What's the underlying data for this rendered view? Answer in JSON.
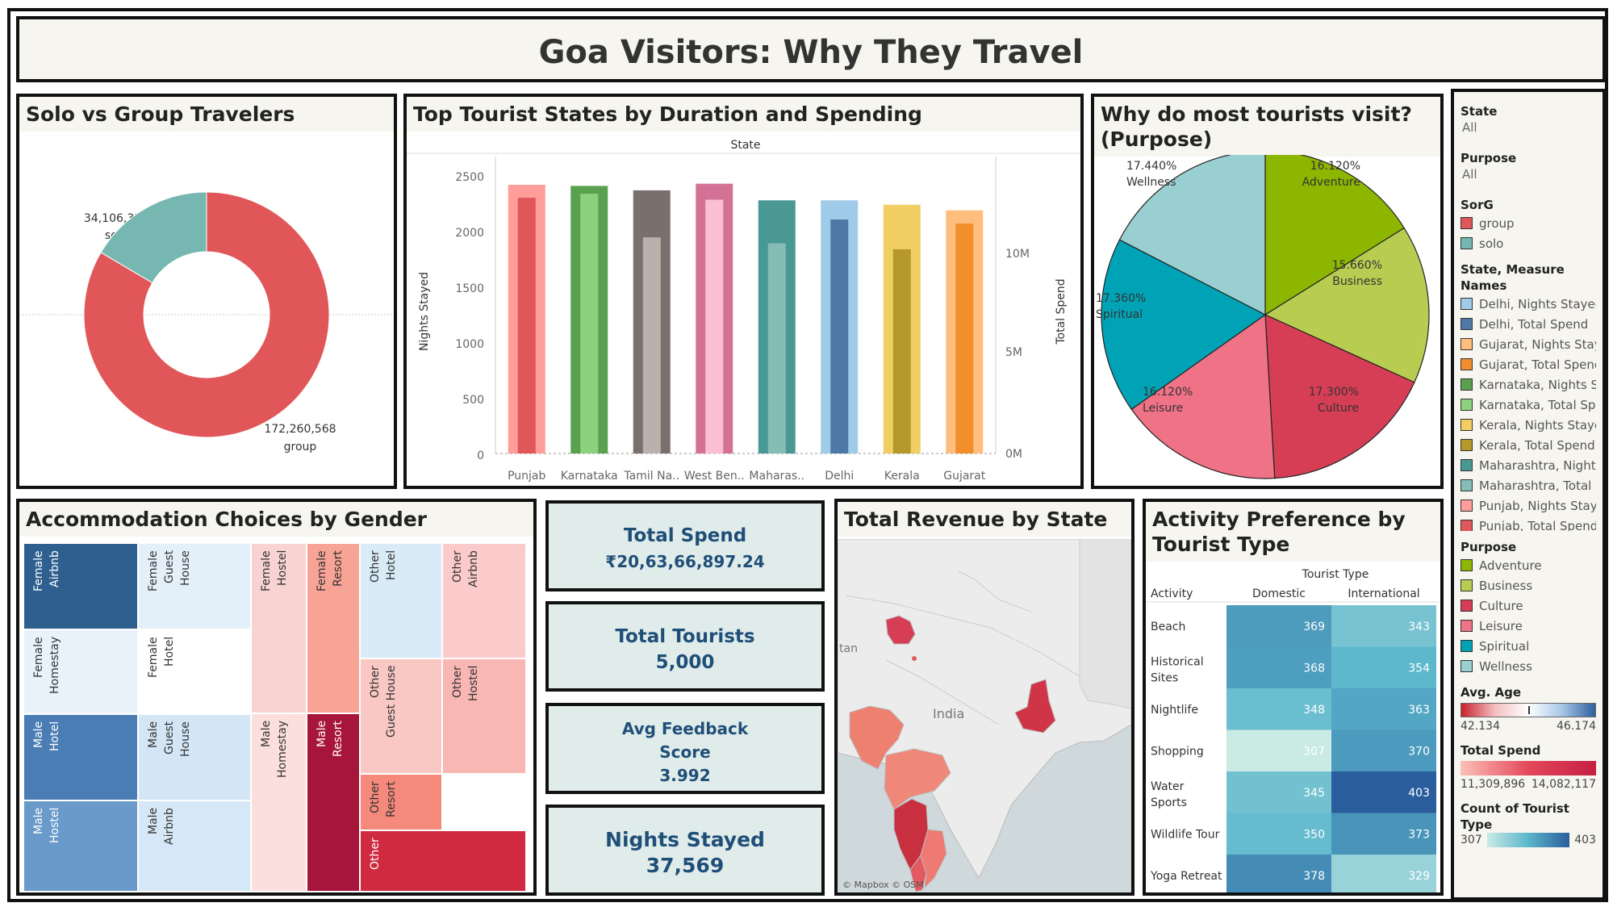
{
  "title": "Goa Visitors: Why They Travel",
  "solo_group": {
    "title": "Solo vs Group Travelers",
    "group_value": "172,260,568",
    "group_label": "group",
    "solo_value": "34,106,329",
    "solo_label": "solo"
  },
  "top_states": {
    "title": "Top Tourist States by Duration and Spending",
    "header": "State",
    "y_left_label": "Nights Stayed",
    "y_right_label": "Total Spend",
    "left_ticks": [
      "2500",
      "2000",
      "1500",
      "1000",
      "500",
      "0"
    ],
    "right_ticks": [
      "10M",
      "5M",
      "0M"
    ]
  },
  "purpose_pie": {
    "title": "Why do most tourists visit?(Purpose)"
  },
  "accommodation": {
    "title": "Accommodation Choices by Gender",
    "cells": [
      {
        "label": "Female\nAirbnb"
      },
      {
        "label": "Female\nGuest\nHouse"
      },
      {
        "label": "Female\nHostel"
      },
      {
        "label": "Female\nResort"
      },
      {
        "label": "Other\nHotel"
      },
      {
        "label": "Other\nAirbnb"
      },
      {
        "label": "Female\nHomestay"
      },
      {
        "label": "Female\nHotel"
      },
      {
        "label": "Other\nGuest House"
      },
      {
        "label": "Other\nHostel"
      },
      {
        "label": "Male\nHotel"
      },
      {
        "label": "Male\nGuest\nHouse"
      },
      {
        "label": "Male\nHomestay"
      },
      {
        "label": "Male\nResort"
      },
      {
        "label": "Other\nResort"
      },
      {
        "label": "Male\nHostel"
      },
      {
        "label": "Male\nAirbnb"
      },
      {
        "label": "Other"
      }
    ]
  },
  "kpis": {
    "spend_label": "Total Spend",
    "spend_value": "₹20,63,66,897.24",
    "tourists_label": "Total Tourists",
    "tourists_value": "5,000",
    "feedback_label1": "Avg Feedback",
    "feedback_label2": "Score",
    "feedback_value": "3.992",
    "nights_label": "Nights Stayed",
    "nights_value": "37,569"
  },
  "revenue_map": {
    "title": "Total Revenue by State",
    "country_label": "India",
    "edge_label": "tan",
    "attribution": "© Mapbox © OSM"
  },
  "activity": {
    "title": "Activity Preference by Tourist Type",
    "col_header": "Tourist Type",
    "row_header": "Activity",
    "columns": [
      "Domestic",
      "International"
    ],
    "rows": [
      {
        "name": "Beach",
        "name2": "",
        "domestic": "369",
        "international": "343"
      },
      {
        "name": "Historical",
        "name2": "Sites",
        "domestic": "368",
        "international": "354"
      },
      {
        "name": "Nightlife",
        "name2": "",
        "domestic": "348",
        "international": "363"
      },
      {
        "name": "Shopping",
        "name2": "",
        "domestic": "307",
        "international": "370"
      },
      {
        "name": "Water",
        "name2": "Sports",
        "domestic": "345",
        "international": "403"
      },
      {
        "name": "Wildlife Tour",
        "name2": "",
        "domestic": "350",
        "international": "373"
      },
      {
        "name": "Yoga Retreat",
        "name2": "",
        "domestic": "378",
        "international": "329"
      }
    ]
  },
  "sidebar": {
    "state_title": "State",
    "state_value": "All",
    "purpose_title": "Purpose",
    "purpose_value": "All",
    "sorg_title": "SorG",
    "sorg_items": [
      {
        "label": "group",
        "color": "#e15759"
      },
      {
        "label": "solo",
        "color": "#76b7b2"
      }
    ],
    "state_measure_title": "State, Measure Names",
    "state_measure_items": [
      {
        "label": "Delhi, Nights Stayed",
        "color": "#a0cbe8"
      },
      {
        "label": "Delhi, Total Spend",
        "color": "#4e79a7"
      },
      {
        "label": "Gujarat, Nights Stay..",
        "color": "#ffbe7d"
      },
      {
        "label": "Gujarat, Total Spend",
        "color": "#f28e2b"
      },
      {
        "label": "Karnataka, Nights S..",
        "color": "#59a14f"
      },
      {
        "label": "Karnataka, Total Sp..",
        "color": "#8cd17d"
      },
      {
        "label": "Kerala, Nights Stayed",
        "color": "#f1ce63"
      },
      {
        "label": "Kerala, Total Spend",
        "color": "#b6992d"
      },
      {
        "label": "Maharashtra, Night..",
        "color": "#499894"
      },
      {
        "label": "Maharashtra, Total ..",
        "color": "#86bcb6"
      },
      {
        "label": "Punjab, Nights Stay..",
        "color": "#ff9d9a"
      },
      {
        "label": "Punjab, Total Spend",
        "color": "#e15759"
      }
    ],
    "purpose_legend_title": "Purpose",
    "purpose_items": [
      {
        "label": "Adventure",
        "color": "#8db600"
      },
      {
        "label": "Business",
        "color": "#b8cc52"
      },
      {
        "label": "Culture",
        "color": "#d63e55"
      },
      {
        "label": "Leisure",
        "color": "#f07286"
      },
      {
        "label": "Spiritual",
        "color": "#00a3b5"
      },
      {
        "label": "Wellness",
        "color": "#9acfd2"
      }
    ],
    "age_title": "Avg. Age",
    "age_min": "42.134",
    "age_max": "46.174",
    "spend_title": "Total Spend",
    "spend_min": "11,309,896",
    "spend_max": "14,082,117",
    "count_title": "Count of Tourist Type",
    "count_min": "307",
    "count_max": "403"
  },
  "chart_data": [
    {
      "type": "pie",
      "title": "Solo vs Group Travelers",
      "categories": [
        "group",
        "solo"
      ],
      "values": [
        172260568,
        34106329
      ],
      "colors": [
        "#e15759",
        "#76b7b2"
      ]
    },
    {
      "type": "bar",
      "title": "Top Tourist States by Duration and Spending",
      "xlabel": "State",
      "ylabel": "Nights Stayed",
      "y2label": "Total Spend",
      "ylim": [
        0,
        2500
      ],
      "y2lim": [
        0,
        14000000
      ],
      "categories": [
        "Punjab",
        "Karnataka",
        "Tamil Na..",
        "West Ben..",
        "Maharas..",
        "Delhi",
        "Kerala",
        "Gujarat"
      ],
      "series": [
        {
          "name": "Nights Stayed",
          "values": [
            2420,
            2410,
            2370,
            2430,
            2280,
            2280,
            2240,
            2190
          ]
        },
        {
          "name": "Total Spend",
          "values": [
            12900000,
            13100000,
            10900000,
            12800000,
            10600000,
            11800000,
            10300000,
            11600000
          ]
        }
      ],
      "colors_nights": [
        "#ff9d9a",
        "#59a14f",
        "#79706e",
        "#d37295",
        "#499894",
        "#a0cbe8",
        "#f1ce63",
        "#ffbe7d"
      ],
      "colors_spend": [
        "#e15759",
        "#8cd17d",
        "#bab0ac",
        "#fabfd2",
        "#86bcb6",
        "#4e79a7",
        "#b6992d",
        "#f28e2b"
      ]
    },
    {
      "type": "pie",
      "title": "Why do most tourists visit?(Purpose)",
      "categories": [
        "Adventure",
        "Business",
        "Culture",
        "Leisure",
        "Spiritual",
        "Wellness"
      ],
      "values": [
        16.12,
        15.66,
        17.3,
        16.12,
        17.36,
        17.44
      ],
      "labels": [
        "16.120%",
        "15.660%",
        "17.300%",
        "16.120%",
        "17.360%",
        "17.440%"
      ],
      "colors": [
        "#8db600",
        "#b8cc52",
        "#d63e55",
        "#f07286",
        "#00a3b5",
        "#9acfd2"
      ]
    },
    {
      "type": "heatmap",
      "title": "Activity Preference by Tourist Type",
      "x": [
        "Domestic",
        "International"
      ],
      "y": [
        "Beach",
        "Historical Sites",
        "Nightlife",
        "Shopping",
        "Water Sports",
        "Wildlife Tour",
        "Yoga Retreat"
      ],
      "values": [
        [
          369,
          343
        ],
        [
          368,
          354
        ],
        [
          348,
          363
        ],
        [
          307,
          370
        ],
        [
          345,
          403
        ],
        [
          350,
          373
        ],
        [
          378,
          329
        ]
      ],
      "range": [
        307,
        403
      ]
    }
  ]
}
